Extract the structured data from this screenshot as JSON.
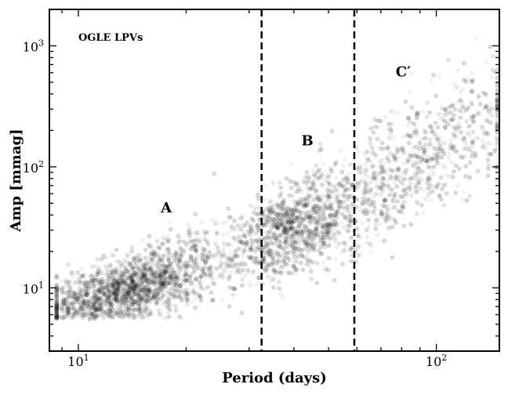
{
  "chart_data": {
    "type": "scatter",
    "title": "",
    "xlabel": "Period (days)",
    "ylabel": "Amp [mmag]",
    "xscale": "log",
    "yscale": "log",
    "xlim": [
      8.3,
      150
    ],
    "ylim": [
      3,
      2000
    ],
    "grid": false,
    "x_ticks": [
      {
        "value": 10,
        "base": "10",
        "exp": "1"
      },
      {
        "value": 100,
        "base": "10",
        "exp": "2"
      }
    ],
    "y_ticks": [
      {
        "value": 10,
        "base": "10",
        "exp": "1"
      },
      {
        "value": 100,
        "base": "10",
        "exp": "2"
      },
      {
        "value": 1000,
        "base": "10",
        "exp": "3"
      }
    ],
    "series_color": "#000000",
    "point_opacity": 0.05,
    "dividers": [
      {
        "name": "A-B boundary",
        "x": 32.5,
        "style": "dashed"
      },
      {
        "name": "B-C' boundary",
        "x": 59,
        "style": "dashed"
      }
    ],
    "annotations": [
      {
        "text": "OGLE LPVs",
        "x": 10.0,
        "y": 1100
      },
      {
        "text": "A",
        "x": 17.0,
        "y": 42
      },
      {
        "text": "B",
        "x": 42.0,
        "y": 150
      },
      {
        "text": "C′",
        "x": 77.0,
        "y": 560
      }
    ],
    "density_ridge": [
      {
        "x": 9,
        "y": 7
      },
      {
        "x": 12,
        "y": 9
      },
      {
        "x": 16,
        "y": 11.5
      },
      {
        "x": 20,
        "y": 14
      },
      {
        "x": 25,
        "y": 18
      },
      {
        "x": 30,
        "y": 22
      },
      {
        "x": 35,
        "y": 26
      },
      {
        "x": 40,
        "y": 32
      },
      {
        "x": 50,
        "y": 40
      },
      {
        "x": 60,
        "y": 55
      },
      {
        "x": 75,
        "y": 80
      },
      {
        "x": 90,
        "y": 120
      },
      {
        "x": 110,
        "y": 170
      },
      {
        "x": 140,
        "y": 220
      }
    ]
  }
}
